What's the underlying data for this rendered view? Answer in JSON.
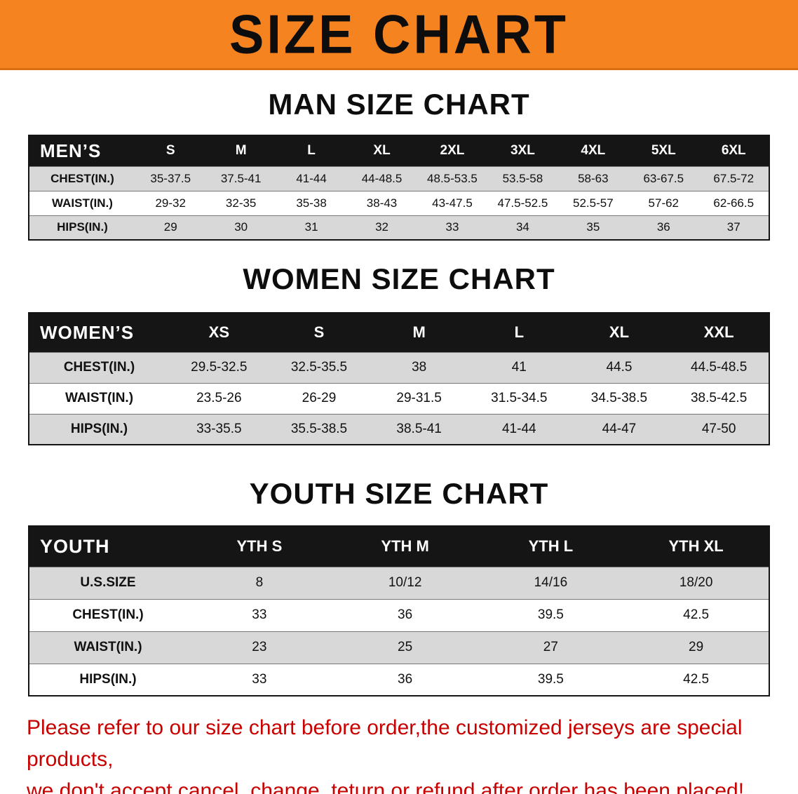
{
  "banner": {
    "title": "SIZE CHART"
  },
  "colors": {
    "banner_bg": "#f5831f",
    "table_header_bg": "#151515",
    "row_stripe": "#d8d8d8",
    "footer_text": "#c80000"
  },
  "tables": [
    {
      "id": "men",
      "heading": "MAN SIZE CHART",
      "corner": "MEN’S",
      "columns": [
        "S",
        "M",
        "L",
        "XL",
        "2XL",
        "3XL",
        "4XL",
        "5XL",
        "6XL"
      ],
      "rows": [
        {
          "label": "CHEST(IN.)",
          "values": [
            "35-37.5",
            "37.5-41",
            "41-44",
            "44-48.5",
            "48.5-53.5",
            "53.5-58",
            "58-63",
            "63-67.5",
            "67.5-72"
          ]
        },
        {
          "label": "WAIST(IN.)",
          "values": [
            "29-32",
            "32-35",
            "35-38",
            "38-43",
            "43-47.5",
            "47.5-52.5",
            "52.5-57",
            "57-62",
            "62-66.5"
          ]
        },
        {
          "label": "HIPS(IN.)",
          "values": [
            "29",
            "30",
            "31",
            "32",
            "33",
            "34",
            "35",
            "36",
            "37"
          ]
        }
      ]
    },
    {
      "id": "women",
      "heading": "WOMEN SIZE CHART",
      "corner": "WOMEN’S",
      "columns": [
        "XS",
        "S",
        "M",
        "L",
        "XL",
        "XXL"
      ],
      "rows": [
        {
          "label": "CHEST(IN.)",
          "values": [
            "29.5-32.5",
            "32.5-35.5",
            "38",
            "41",
            "44.5",
            "44.5-48.5"
          ]
        },
        {
          "label": "WAIST(IN.)",
          "values": [
            "23.5-26",
            "26-29",
            "29-31.5",
            "31.5-34.5",
            "34.5-38.5",
            "38.5-42.5"
          ]
        },
        {
          "label": "HIPS(IN.)",
          "values": [
            "33-35.5",
            "35.5-38.5",
            "38.5-41",
            "41-44",
            "44-47",
            "47-50"
          ]
        }
      ]
    },
    {
      "id": "youth",
      "heading": "YOUTH SIZE CHART",
      "corner": "YOUTH",
      "columns": [
        "YTH S",
        "YTH M",
        "YTH L",
        "YTH XL"
      ],
      "rows": [
        {
          "label": "U.S.SIZE",
          "values": [
            "8",
            "10/12",
            "14/16",
            "18/20"
          ]
        },
        {
          "label": "CHEST(IN.)",
          "values": [
            "33",
            "36",
            "39.5",
            "42.5"
          ]
        },
        {
          "label": "WAIST(IN.)",
          "values": [
            "23",
            "25",
            "27",
            "29"
          ]
        },
        {
          "label": "HIPS(IN.)",
          "values": [
            "33",
            "36",
            "39.5",
            "42.5"
          ]
        }
      ]
    }
  ],
  "footer": {
    "line1": "Please refer to our size chart before order,the customized jerseys are special products,",
    "line2": "we don't accept cancel, change, teturn or refund after order has been placed!"
  }
}
